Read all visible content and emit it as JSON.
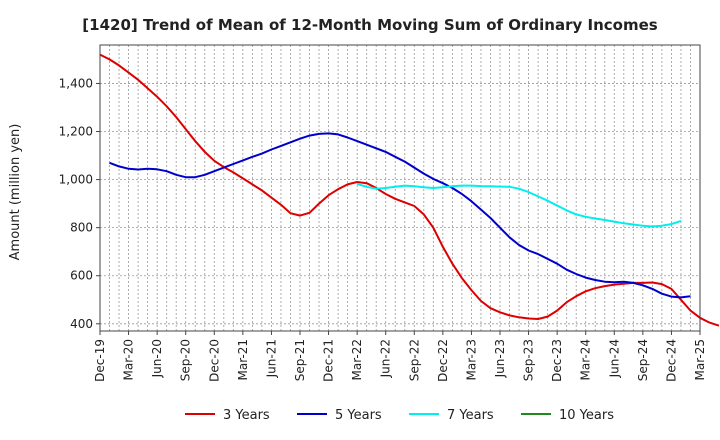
{
  "chart_data": {
    "type": "line",
    "title": "[1420]  Trend of Mean of 12-Month Moving Sum of Ordinary Incomes",
    "ylabel": "Amount (million yen)",
    "xlabel": "",
    "ylim": [
      370,
      1560
    ],
    "y_ticks": [
      400,
      600,
      800,
      1000,
      1200,
      1400
    ],
    "y_tick_labels": [
      "400",
      "600",
      "800",
      "1,000",
      "1,200",
      "1,400"
    ],
    "x_ticks": [
      "Dec-19",
      "Mar-20",
      "Jun-20",
      "Sep-20",
      "Dec-20",
      "Mar-21",
      "Jun-21",
      "Sep-21",
      "Dec-21",
      "Mar-22",
      "Jun-22",
      "Sep-22",
      "Dec-22",
      "Mar-23",
      "Jun-23",
      "Sep-23",
      "Dec-23",
      "Mar-24",
      "Jun-24",
      "Sep-24",
      "Dec-24",
      "Mar-25"
    ],
    "x_start_month": "Dec-19",
    "grid": true,
    "legend_position": "bottom",
    "series": [
      {
        "name": "3 Years",
        "color": "#dd0000",
        "start_offset": 0,
        "values": [
          1520,
          1500,
          1475,
          1445,
          1415,
          1380,
          1345,
          1305,
          1260,
          1210,
          1160,
          1115,
          1078,
          1052,
          1030,
          1005,
          980,
          955,
          925,
          895,
          860,
          850,
          862,
          900,
          935,
          960,
          980,
          990,
          985,
          965,
          940,
          920,
          905,
          890,
          855,
          800,
          720,
          650,
          590,
          540,
          495,
          465,
          448,
          435,
          427,
          422,
          420,
          430,
          455,
          490,
          515,
          535,
          548,
          557,
          563,
          567,
          570,
          570,
          572,
          565,
          545,
          500,
          455,
          425,
          405,
          392
        ]
      },
      {
        "name": "5 Years",
        "color": "#0000cc",
        "start_offset": 1,
        "values": [
          1070,
          1055,
          1045,
          1042,
          1045,
          1043,
          1035,
          1020,
          1010,
          1010,
          1020,
          1035,
          1050,
          1065,
          1080,
          1095,
          1108,
          1125,
          1140,
          1155,
          1170,
          1183,
          1190,
          1192,
          1188,
          1175,
          1160,
          1145,
          1130,
          1115,
          1095,
          1075,
          1050,
          1025,
          1003,
          985,
          965,
          940,
          910,
          875,
          840,
          800,
          760,
          728,
          705,
          690,
          670,
          650,
          625,
          607,
          592,
          582,
          575,
          573,
          575,
          570,
          560,
          545,
          525,
          513,
          510,
          515
        ]
      },
      {
        "name": "7 Years",
        "color": "#00eeee",
        "start_offset": 27,
        "values": [
          982,
          970,
          962,
          965,
          970,
          975,
          972,
          968,
          965,
          968,
          972,
          975,
          975,
          973,
          972,
          971,
          970,
          962,
          948,
          930,
          912,
          892,
          872,
          855,
          845,
          838,
          832,
          825,
          818,
          813,
          808,
          805,
          808,
          815,
          828
        ]
      },
      {
        "name": "10 Years",
        "color": "#228822",
        "start_offset": 0,
        "values": []
      }
    ]
  }
}
